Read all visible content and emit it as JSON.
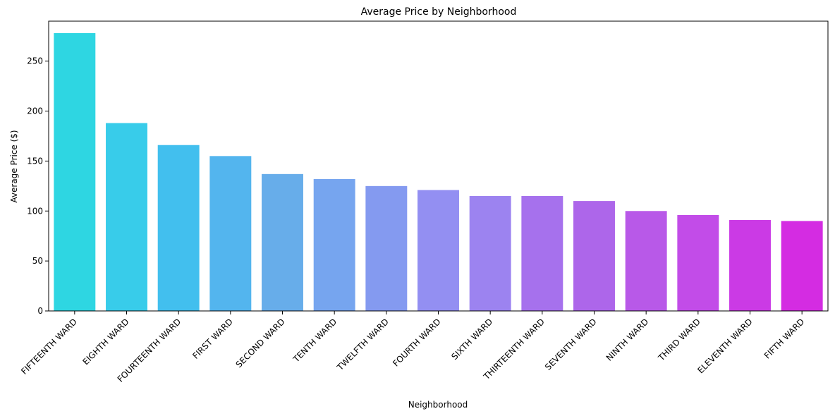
{
  "chart_data": {
    "type": "bar",
    "title": "Average Price by Neighborhood",
    "xlabel": "Neighborhood",
    "ylabel": "Average Price ($)",
    "ylim": [
      0,
      290
    ],
    "yticks": [
      0,
      50,
      100,
      150,
      200,
      250
    ],
    "grid": false,
    "legend": "none",
    "categories": [
      "FIFTEENTH WARD",
      "EIGHTH WARD",
      "FOURTEENTH WARD",
      "FIRST WARD",
      "SECOND WARD",
      "TENTH WARD",
      "TWELFTH WARD",
      "FOURTH WARD",
      "SIXTH WARD",
      "THIRTEENTH WARD",
      "SEVENTH WARD",
      "NINTH WARD",
      "THIRD WARD",
      "ELEVENTH WARD",
      "FIFTH WARD"
    ],
    "values": [
      278,
      188,
      166,
      155,
      137,
      132,
      125,
      121,
      115,
      115,
      110,
      100,
      96,
      91,
      90
    ],
    "colors": [
      "#2ed6e2",
      "#38ccea",
      "#42bfee",
      "#53b5ee",
      "#67adea",
      "#76a5ef",
      "#849af0",
      "#938ff2",
      "#9c83f0",
      "#a671ed",
      "#ad66ea",
      "#b859e8",
      "#c24ce8",
      "#cb3ae5",
      "#d42ce2"
    ]
  }
}
